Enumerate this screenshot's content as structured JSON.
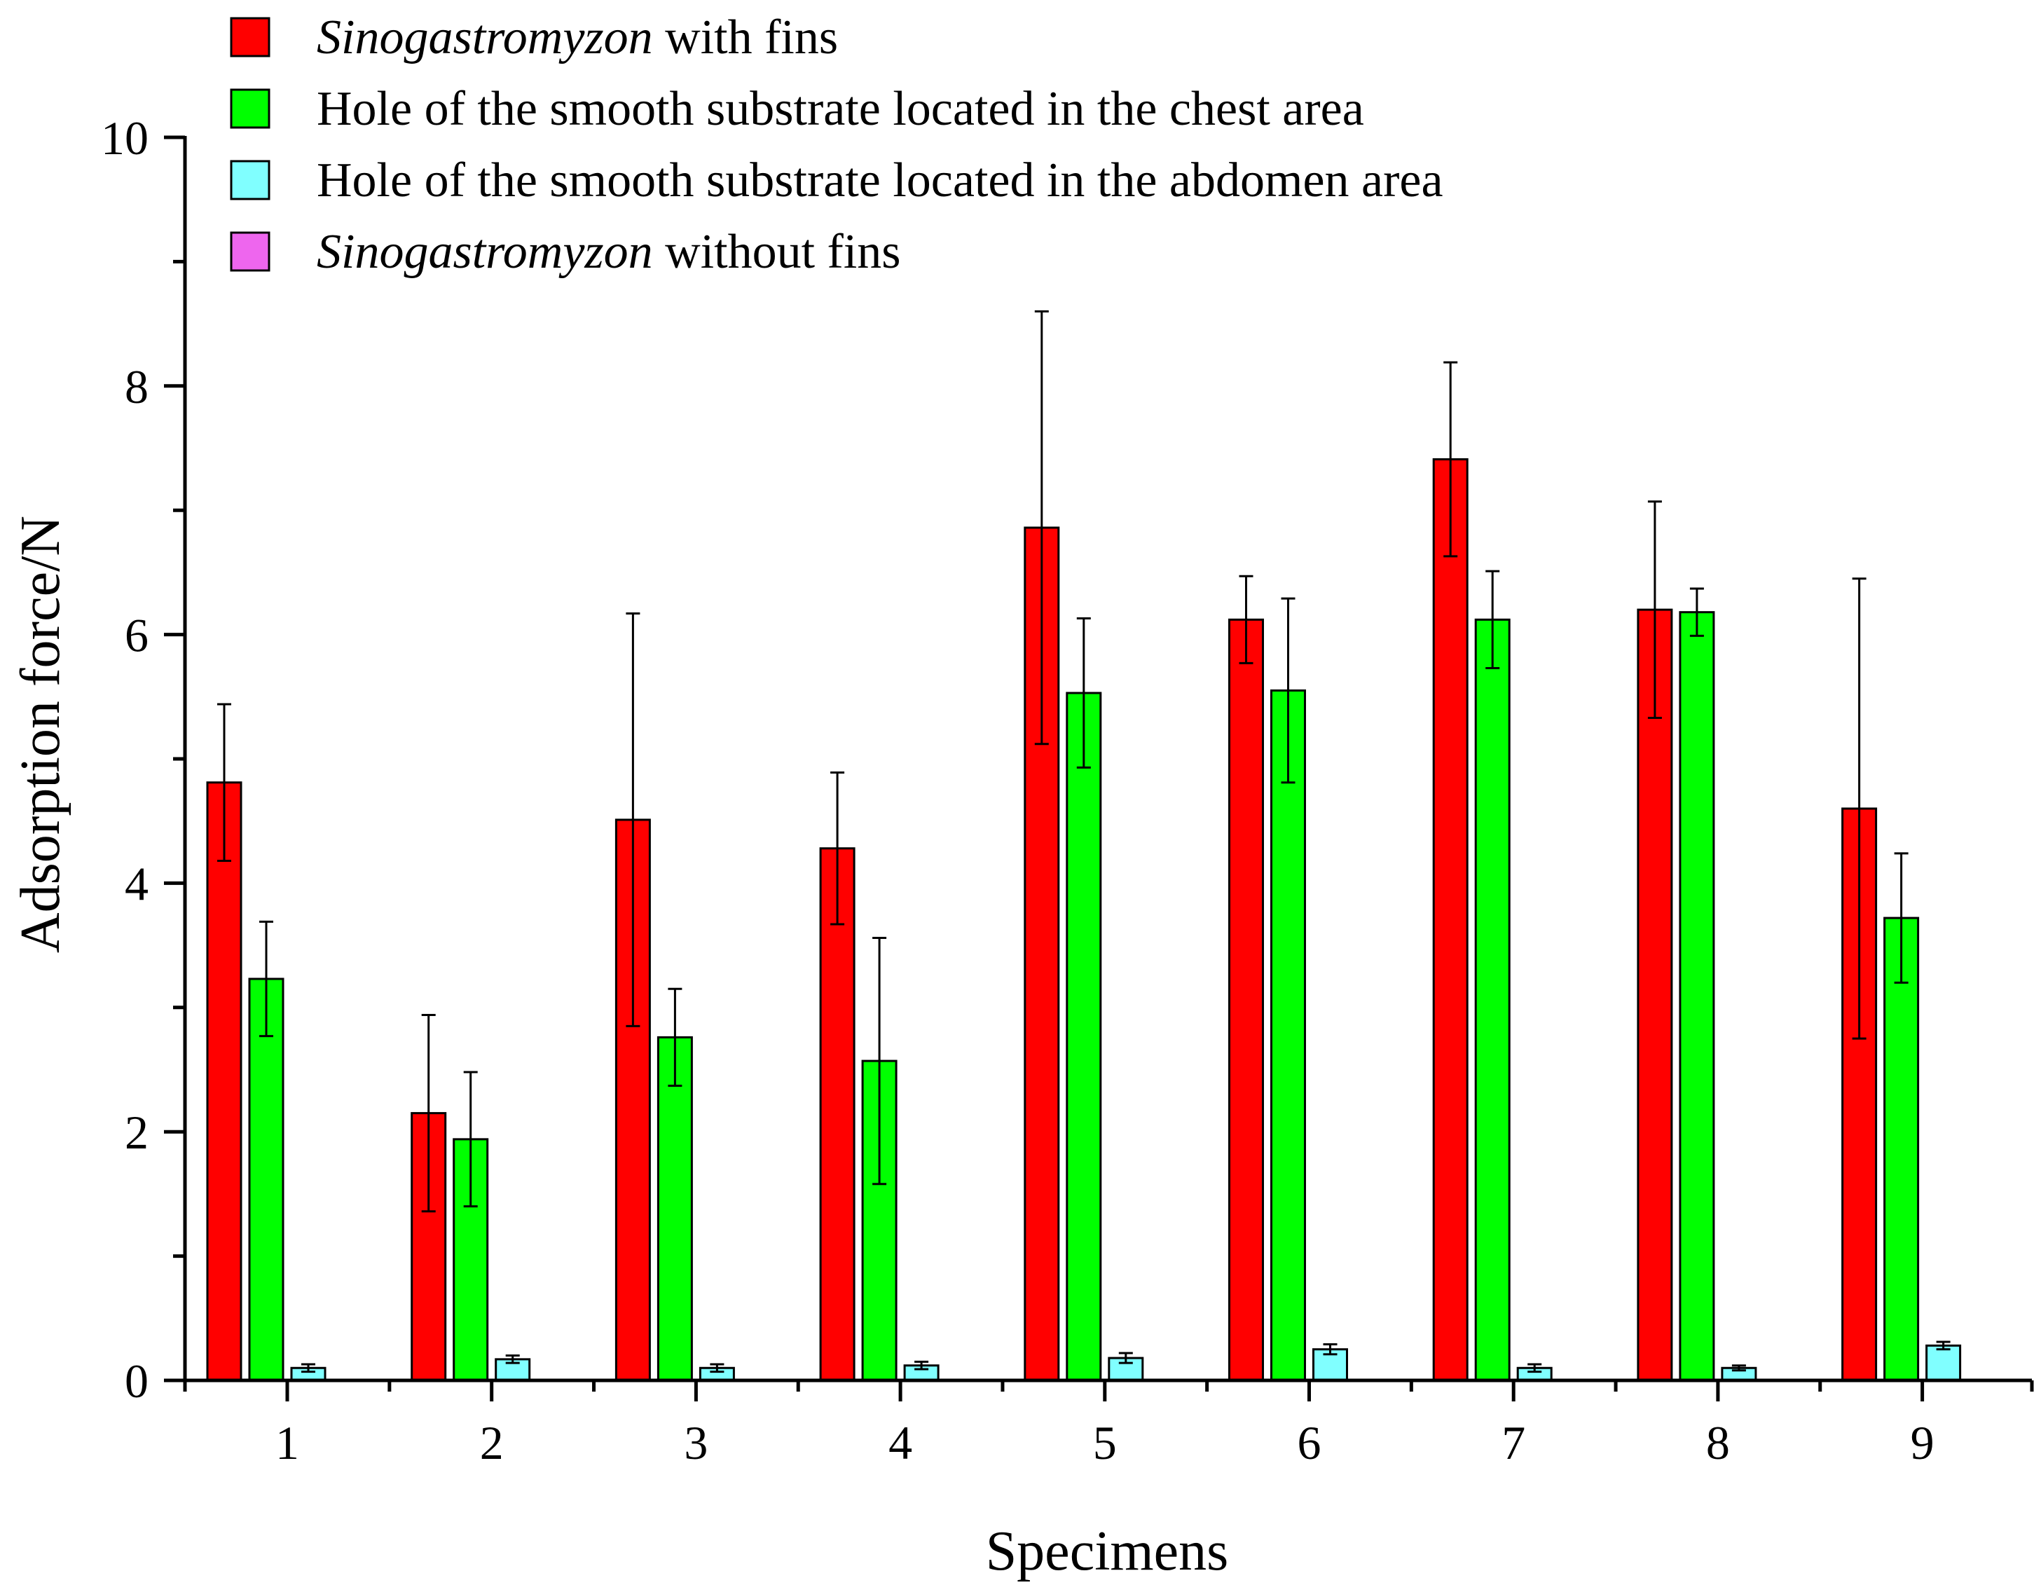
{
  "chart_data": {
    "type": "bar",
    "xlabel": "Specimens",
    "ylabel": "Adsorption force/N",
    "ylim": [
      0,
      10
    ],
    "yticks": [
      "0",
      "2",
      "4",
      "6",
      "8",
      "10"
    ],
    "categories": [
      "1",
      "2",
      "3",
      "4",
      "5",
      "6",
      "7",
      "8",
      "9"
    ],
    "grid": false,
    "legend_position": "top-left",
    "series": [
      {
        "name_italic": "Sinogastromyzon",
        "name_rest": "with fins",
        "color": "#ff0000",
        "values": [
          4.81,
          2.15,
          4.51,
          4.28,
          6.86,
          6.12,
          7.41,
          6.2,
          4.6
        ],
        "errors": [
          0.63,
          0.79,
          1.66,
          0.61,
          1.74,
          0.35,
          0.78,
          0.87,
          1.85
        ]
      },
      {
        "name": "Hole of the smooth substrate located in the chest area",
        "color": "#00ff00",
        "values": [
          3.23,
          1.94,
          2.76,
          2.57,
          5.53,
          5.55,
          6.12,
          6.18,
          3.72
        ],
        "errors": [
          0.46,
          0.54,
          0.39,
          0.99,
          0.6,
          0.74,
          0.39,
          0.19,
          0.52
        ]
      },
      {
        "name": "Hole of the smooth substrate located in the abdomen area",
        "color": "#80ffff",
        "values": [
          0.1,
          0.17,
          0.1,
          0.12,
          0.18,
          0.25,
          0.1,
          0.1,
          0.28
        ],
        "errors": [
          0.03,
          0.03,
          0.03,
          0.03,
          0.04,
          0.04,
          0.03,
          0.02,
          0.03
        ]
      },
      {
        "name_italic": "Sinogastromyzon",
        "name_rest": "without fins",
        "color": "#ee66ee",
        "values": [
          0,
          0,
          0,
          0,
          0,
          0,
          0,
          0,
          0
        ],
        "errors": [
          0,
          0,
          0,
          0,
          0,
          0,
          0,
          0,
          0
        ]
      }
    ]
  }
}
